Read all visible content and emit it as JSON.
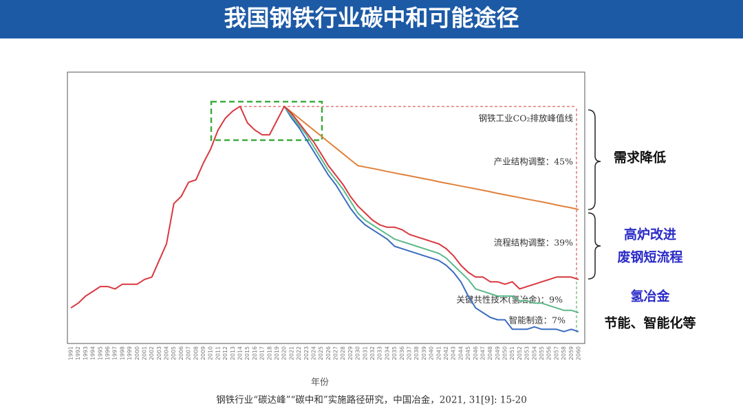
{
  "chart_data": {
    "type": "line",
    "title": "我国钢铁行业碳中和可能途径",
    "x_label": "年份",
    "source": "钢铁行业“碳达峰”“碳中和”实施路径研究，中国冶金，2021, 31[9]: 15-20",
    "annotations": [
      "钢铁工业CO₂排放峰值线",
      "产业结构调整：45%",
      "流程结构调整：39%",
      "关键共性技术(氢冶金)：9%",
      "智能制造：7%"
    ],
    "side_labels": [
      "需求降低",
      "高炉改进",
      "废钢短流程",
      "氢冶金",
      "节能、智能化等"
    ],
    "categories": [
      "1991",
      "1992",
      "1993",
      "1994",
      "1995",
      "1996",
      "1997",
      "1998",
      "1999",
      "2000",
      "2001",
      "2002",
      "2003",
      "2004",
      "2005",
      "2006",
      "2007",
      "2008",
      "2009",
      "2010",
      "2011",
      "2012",
      "2013",
      "2014",
      "2015",
      "2016",
      "2017",
      "2018",
      "2019",
      "2020",
      "2021",
      "2022",
      "2023",
      "2024",
      "2025",
      "2026",
      "2027",
      "2028",
      "2029",
      "2030",
      "2031",
      "2032",
      "2033",
      "2034",
      "2035",
      "2036",
      "2037",
      "2038",
      "2039",
      "2040",
      "2041",
      "2042",
      "2043",
      "2044",
      "2045",
      "2046",
      "2047",
      "2048",
      "2049",
      "2050",
      "2051",
      "2052",
      "2053",
      "2054",
      "2055",
      "2056",
      "2057",
      "2058",
      "2059",
      "2060"
    ],
    "ylim": [
      0,
      115
    ],
    "series": [
      {
        "color": "#d9363e",
        "values": [
          15,
          17,
          20,
          22,
          24,
          24,
          23,
          25,
          25,
          25,
          27,
          28,
          35,
          42,
          59,
          62,
          68,
          69,
          76,
          82,
          90,
          95,
          98,
          100,
          93,
          90,
          88,
          88,
          94,
          100,
          97,
          93,
          89,
          85,
          80,
          75,
          71,
          67,
          62,
          58,
          55,
          52,
          50,
          49,
          49,
          48,
          46,
          45,
          44,
          43,
          42,
          40,
          37,
          33,
          30,
          28,
          28,
          26,
          26,
          25,
          26,
          23,
          24,
          25,
          26,
          27,
          28,
          28,
          28,
          27
        ]
      },
      {
        "color": "#e0803a",
        "values": [
          null,
          null,
          null,
          null,
          null,
          null,
          null,
          null,
          null,
          null,
          null,
          null,
          null,
          null,
          null,
          null,
          null,
          null,
          null,
          null,
          null,
          null,
          null,
          null,
          null,
          null,
          null,
          null,
          null,
          100,
          97.5,
          95,
          92.5,
          90,
          87.5,
          85,
          82.5,
          80,
          77.5,
          75,
          74.4,
          73.8,
          73.2,
          72.5,
          71.9,
          71.3,
          70.7,
          70.1,
          69.5,
          68.9,
          68.2,
          67.6,
          67,
          66.4,
          65.8,
          65.2,
          64.6,
          64,
          63.3,
          62.7,
          62.1,
          61.5,
          60.9,
          60.3,
          59.7,
          59.1,
          58.4,
          57.8,
          57.2,
          56.5
        ]
      },
      {
        "color": "#5cb88a",
        "values": [
          null,
          null,
          null,
          null,
          null,
          null,
          null,
          null,
          null,
          null,
          null,
          null,
          null,
          null,
          null,
          null,
          null,
          null,
          null,
          null,
          null,
          null,
          null,
          null,
          null,
          null,
          null,
          null,
          null,
          100,
          96,
          92,
          88,
          83,
          78,
          73,
          69,
          65,
          60,
          55,
          52,
          50,
          48,
          46,
          44,
          43,
          42,
          41,
          40,
          39,
          38,
          36,
          33,
          30,
          27,
          23,
          22,
          21,
          20,
          20,
          20,
          18,
          18,
          17,
          17,
          16,
          15,
          14,
          14,
          13
        ]
      },
      {
        "color": "#3a6cc0",
        "values": [
          null,
          null,
          null,
          null,
          null,
          null,
          null,
          null,
          null,
          null,
          null,
          null,
          null,
          null,
          null,
          null,
          null,
          null,
          null,
          null,
          null,
          null,
          null,
          null,
          null,
          null,
          null,
          null,
          null,
          100,
          95,
          91,
          86,
          81,
          76,
          71,
          67,
          62,
          57,
          53,
          50,
          48,
          46,
          44,
          41,
          40,
          39,
          38,
          37,
          36,
          35,
          33,
          30,
          26,
          20,
          15,
          13,
          11,
          10,
          10,
          6,
          6,
          6,
          7,
          6,
          6,
          6,
          5,
          6,
          5
        ]
      }
    ]
  }
}
